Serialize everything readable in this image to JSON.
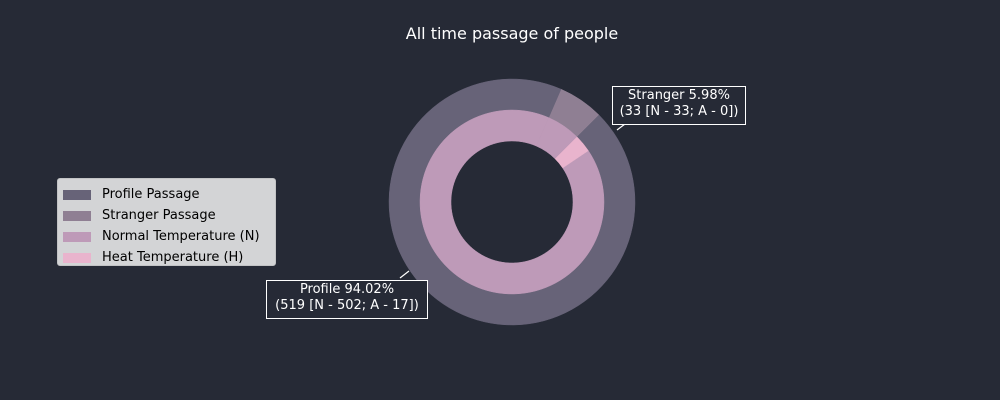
{
  "chart_data": {
    "type": "pie",
    "variant": "nested-donut",
    "title": "All time passage of people",
    "legend_position": "left",
    "legend": [
      {
        "label": "Profile Passage",
        "color": "#676378"
      },
      {
        "label": "Stranger Passage",
        "color": "#8f7f93"
      },
      {
        "label": "Normal Temperature (N)",
        "color": "#be9ab8"
      },
      {
        "label": "Heat Temperature (H)",
        "color": "#e9b4cd"
      }
    ],
    "outer_ring": [
      {
        "name": "Stranger Passage",
        "value": 33,
        "color": "#8f7f93"
      },
      {
        "name": "Profile Passage",
        "value": 519,
        "color": "#676378"
      }
    ],
    "inner_ring": [
      {
        "name": "Normal Temperature (N)",
        "value": 33,
        "color": "#be9ab8"
      },
      {
        "name": "Heat Temperature (H)",
        "value": 0,
        "color": "#e9b4cd"
      },
      {
        "name": "Normal Temperature (N)",
        "value": 502,
        "color": "#be9ab8"
      },
      {
        "name": "Heat Temperature (H)",
        "value": 17,
        "color": "#e9b4cd"
      }
    ],
    "annotations": [
      {
        "id": "stranger",
        "line1": "Stranger 5.98%",
        "line2": "(33 [N - 33; A - 0])"
      },
      {
        "id": "profile",
        "line1": "Profile 94.02%",
        "line2": "(519 [N - 502; A - 17])"
      }
    ]
  }
}
